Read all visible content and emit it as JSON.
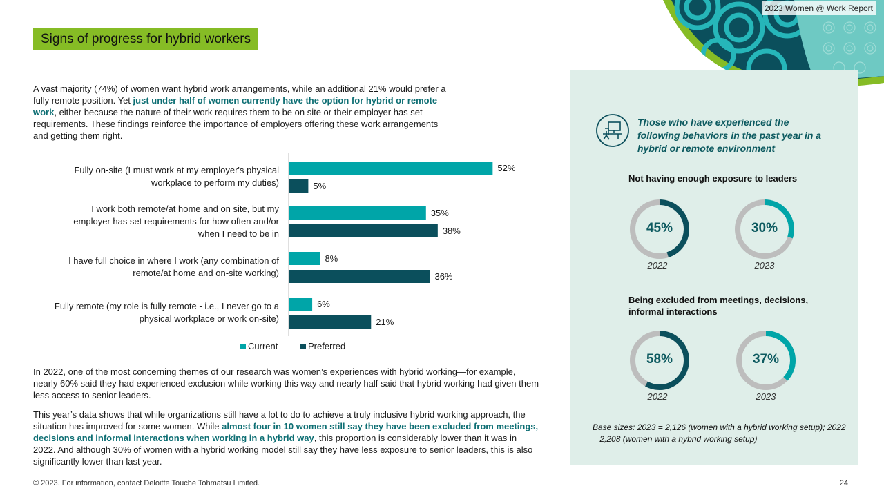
{
  "header": {
    "report_tag": "2023 Women @ Work Report",
    "section_title": "Signs of progress for hybrid workers"
  },
  "intro": {
    "text_a": "A vast majority (74%) of women want hybrid work arrangements, while an additional 21% would prefer a fully remote position. Yet ",
    "highlight": "just under half of women currently have the option for hybrid or remote work",
    "text_b": ", either because the nature of their work requires them to be on site or their employer has set requirements. These findings reinforce the importance of employers offering these work arrangements and getting them right."
  },
  "chart_data": {
    "type": "bar",
    "orientation": "horizontal",
    "categories": [
      [
        "Fully on-site (I must work at my employer's physical",
        "workplace to perform my duties)"
      ],
      [
        "I work both remote/at home and on site, but my",
        "employer has set requirements for how often and/or",
        "when I need to be in"
      ],
      [
        "I have full choice in where I work (any combination of",
        "remote/at home and on-site working)"
      ],
      [
        "Fully remote (my role is fully remote - i.e., I never go to a",
        "physical workplace or work on-site)"
      ]
    ],
    "series": [
      {
        "name": "Current",
        "values": [
          52,
          35,
          8,
          6
        ],
        "color": "#00a5a8"
      },
      {
        "name": "Preferred",
        "values": [
          5,
          38,
          36,
          21
        ],
        "color": "#0b4f5c"
      }
    ],
    "value_suffix": "%",
    "xlim": [
      0,
      60
    ],
    "legend": "bottom",
    "grid": false
  },
  "body": {
    "p2": "In 2022, one of the most concerning themes of our research was women’s experiences with hybrid working—for example, nearly 60% said they had experienced exclusion while working this way and nearly half said that hybrid working had given them less access to senior leaders.",
    "p3_a": "This year’s data shows that while organizations still have a lot to do to achieve a truly inclusive hybrid working approach, the situation has improved for some women. While ",
    "p3_highlight": "almost four in 10 women still say they have been excluded from meetings, decisions and informal interactions when working in a hybrid way",
    "p3_b": ", this proportion is considerably lower than it was in 2022. And although 30% of women with a hybrid working model still say they have less exposure to senior leaders, this is also significantly lower than last year."
  },
  "panel": {
    "icon": "desk-workstation-icon",
    "heading": "Those who have experienced the following behaviors in the past year in a hybrid or remote environment",
    "metrics": [
      {
        "label": "Not having enough exposure to leaders",
        "items": [
          {
            "year": "2022",
            "percent": 45,
            "display": "45%"
          },
          {
            "year": "2023",
            "percent": 30,
            "display": "30%"
          }
        ]
      },
      {
        "label": "Being excluded from meetings, decisions, informal interactions",
        "items": [
          {
            "year": "2022",
            "percent": 58,
            "display": "58%"
          },
          {
            "year": "2023",
            "percent": 37,
            "display": "37%"
          }
        ]
      }
    ],
    "base_sizes": "Base sizes: 2023 = 2,126 (women with a hybrid working setup); 2022 = 2,208 (women with a hybrid working setup)",
    "colors": {
      "dark": "#0b4f5c",
      "teal": "#00a5a8",
      "track": "#bdbdbd"
    }
  },
  "footer": {
    "copyright": "© 2023. For information, contact Deloitte Touche Tohmatsu Limited.",
    "page": "24"
  }
}
